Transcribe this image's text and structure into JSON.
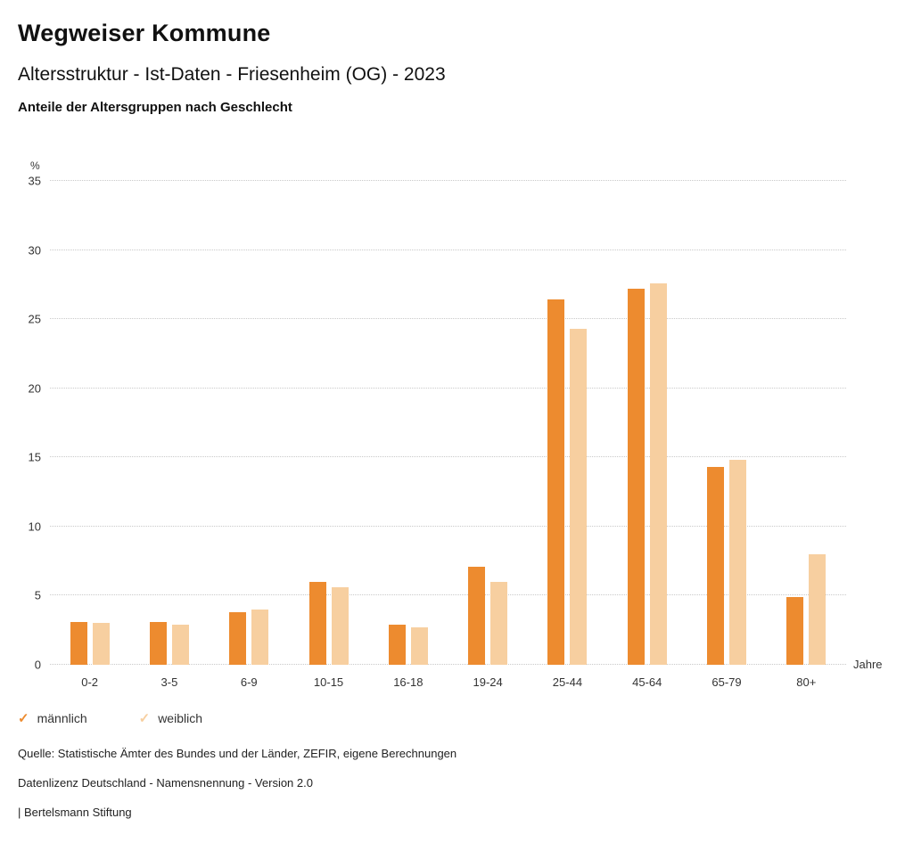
{
  "header": {
    "title": "Wegweiser Kommune",
    "subtitle": "Altersstruktur - Ist-Daten - Friesenheim (OG) - 2023",
    "sub_subtitle": "Anteile der Altersgruppen nach Geschlecht"
  },
  "chart_data": {
    "type": "bar",
    "title": "Anteile der Altersgruppen nach Geschlecht",
    "unit": "%",
    "xlabel": "Jahre",
    "ylabel": "%",
    "ylim": [
      0,
      35
    ],
    "yticks": [
      0,
      5,
      10,
      15,
      20,
      25,
      30,
      35
    ],
    "grid": "horizontal-dotted",
    "legend_position": "bottom-left",
    "categories": [
      "0-2",
      "3-5",
      "6-9",
      "10-15",
      "16-18",
      "19-24",
      "25-44",
      "45-64",
      "65-79",
      "80+"
    ],
    "series": [
      {
        "name": "männlich",
        "color": "#ED8B2F",
        "values": [
          3.1,
          3.1,
          3.8,
          6.0,
          2.9,
          7.1,
          26.4,
          27.2,
          14.3,
          4.9
        ]
      },
      {
        "name": "weiblich",
        "color": "#F7CFA0",
        "values": [
          3.0,
          2.9,
          4.0,
          5.6,
          2.7,
          6.0,
          24.3,
          27.6,
          14.8,
          8.0
        ]
      }
    ]
  },
  "footer": {
    "source": "Quelle: Statistische Ämter des Bundes und der Länder, ZEFIR, eigene Berechnungen",
    "license": "Datenlizenz Deutschland - Namensnennung - Version 2.0",
    "attribution": "| Bertelsmann Stiftung"
  }
}
